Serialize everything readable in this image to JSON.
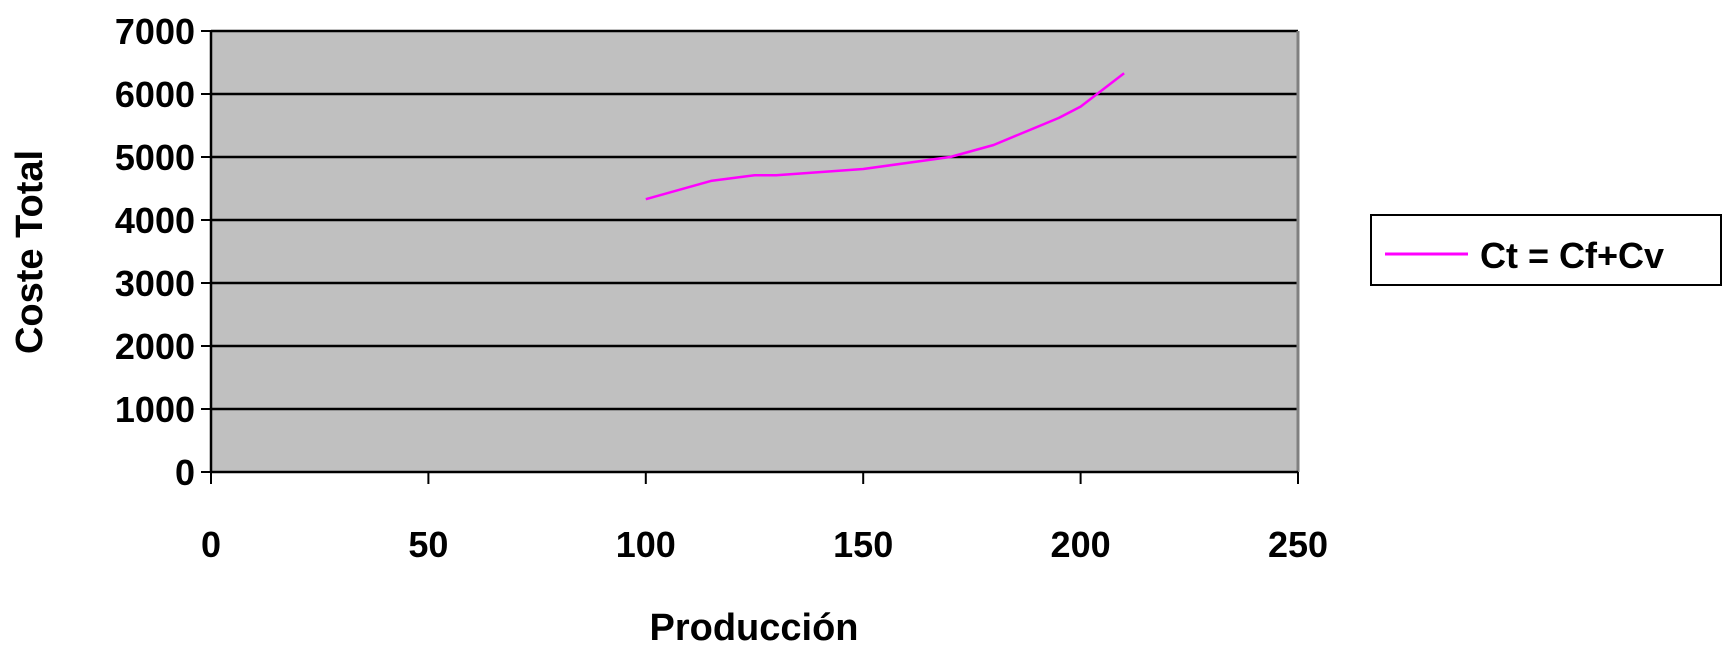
{
  "chart_data": {
    "type": "line",
    "title": "",
    "xlabel": "Producción",
    "ylabel": "Coste Total",
    "xlim": [
      0,
      250
    ],
    "ylim": [
      0,
      7000
    ],
    "x_ticks": [
      0,
      50,
      100,
      150,
      200,
      250
    ],
    "y_ticks": [
      0,
      1000,
      2000,
      3000,
      4000,
      5000,
      6000,
      7000
    ],
    "grid": true,
    "legend_position": "right",
    "plot_background": "#c0c0c0",
    "series": [
      {
        "name": "Ct = Cf+Cv",
        "color": "#ff00ff",
        "x": [
          100,
          115,
          125,
          130,
          150,
          170,
          180,
          195,
          200,
          210
        ],
        "y": [
          4330,
          4620,
          4710,
          4710,
          4810,
          5000,
          5190,
          5620,
          5800,
          6330
        ]
      }
    ]
  }
}
